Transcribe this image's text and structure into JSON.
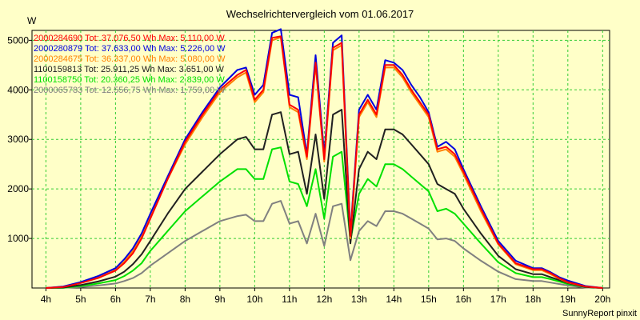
{
  "chart_data": {
    "type": "line",
    "title": "Wechselrichtervergleich vom 01.06.2017",
    "ylabel": "W",
    "xlabel": "",
    "footer": "SunnyReport pinxit",
    "grid": true,
    "ylim": [
      0,
      5200
    ],
    "xlim": [
      3.6,
      20.2
    ],
    "y_ticks": [
      1000,
      2000,
      3000,
      4000,
      5000
    ],
    "x_ticks": [
      {
        "v": 4,
        "label": "4h"
      },
      {
        "v": 5,
        "label": "5h"
      },
      {
        "v": 6,
        "label": "6h"
      },
      {
        "v": 7,
        "label": "7h"
      },
      {
        "v": 8,
        "label": "8h"
      },
      {
        "v": 9,
        "label": "9h"
      },
      {
        "v": 10,
        "label": "10h"
      },
      {
        "v": 11,
        "label": "11h"
      },
      {
        "v": 12,
        "label": "12h"
      },
      {
        "v": 13,
        "label": "13h"
      },
      {
        "v": 14,
        "label": "14h"
      },
      {
        "v": 15,
        "label": "15h"
      },
      {
        "v": 16,
        "label": "16h"
      },
      {
        "v": 17,
        "label": "17h"
      },
      {
        "v": 18,
        "label": "18h"
      },
      {
        "v": 19,
        "label": "19h"
      },
      {
        "v": 20,
        "label": "20h"
      }
    ],
    "x": [
      4.0,
      4.5,
      5.0,
      5.5,
      6.0,
      6.25,
      6.5,
      6.75,
      7.0,
      7.5,
      8.0,
      8.5,
      9.0,
      9.5,
      9.75,
      10.0,
      10.25,
      10.5,
      10.75,
      11.0,
      11.25,
      11.5,
      11.75,
      12.0,
      12.25,
      12.5,
      12.75,
      13.0,
      13.25,
      13.5,
      13.75,
      14.0,
      14.25,
      14.5,
      14.75,
      15.0,
      15.25,
      15.5,
      15.75,
      16.0,
      16.5,
      17.0,
      17.5,
      18.0,
      18.25,
      18.5,
      18.75,
      19.0,
      19.5,
      20.0
    ],
    "series": [
      {
        "name": "2000284690",
        "legend": "2000284690 Tot: 37.076,50 Wh Max: 5.110,00 W",
        "color": "#ff0000",
        "values": [
          0,
          20,
          100,
          200,
          350,
          500,
          700,
          1000,
          1400,
          2200,
          2950,
          3500,
          4000,
          4300,
          4400,
          3800,
          4000,
          5050,
          5080,
          3700,
          3600,
          2650,
          4550,
          2600,
          4850,
          4950,
          1050,
          3500,
          3800,
          3500,
          4500,
          4500,
          4300,
          4000,
          3750,
          3500,
          2800,
          2850,
          2700,
          2350,
          1600,
          900,
          500,
          380,
          380,
          300,
          200,
          120,
          30,
          0
        ]
      },
      {
        "name": "2000280879",
        "legend": "2000280879 Tot: 37.633,00 Wh Max: 5.226,00 W",
        "color": "#0000e0",
        "values": [
          0,
          30,
          120,
          240,
          400,
          580,
          800,
          1100,
          1500,
          2250,
          3000,
          3550,
          4050,
          4400,
          4450,
          3900,
          4100,
          5150,
          5226,
          3900,
          3850,
          2700,
          4700,
          2700,
          4950,
          5100,
          1100,
          3600,
          3900,
          3600,
          4600,
          4550,
          4400,
          4100,
          3850,
          3550,
          2850,
          2950,
          2800,
          2400,
          1650,
          950,
          550,
          400,
          400,
          320,
          220,
          150,
          40,
          0
        ]
      },
      {
        "name": "2000284675",
        "legend": "2000284675 Tot: 36.337,00 Wh Max: 5.080,00 W",
        "color": "#ff8000",
        "values": [
          0,
          25,
          110,
          220,
          380,
          530,
          750,
          1050,
          1450,
          2200,
          2900,
          3450,
          3950,
          4250,
          4350,
          3750,
          3950,
          5000,
          5060,
          3650,
          3550,
          2600,
          4500,
          2550,
          4800,
          4900,
          1000,
          3450,
          3750,
          3450,
          4450,
          4450,
          4250,
          3950,
          3700,
          3450,
          2750,
          2800,
          2650,
          2300,
          1550,
          880,
          480,
          360,
          360,
          280,
          190,
          110,
          30,
          0
        ]
      },
      {
        "name": "1100159813",
        "legend": "1100159813 Tot: 25.911,25 Wh Max: 3.651,00 W",
        "color": "#202020",
        "values": [
          0,
          10,
          60,
          130,
          230,
          330,
          480,
          680,
          950,
          1500,
          2000,
          2350,
          2700,
          3000,
          3050,
          2800,
          2800,
          3500,
          3550,
          2700,
          2750,
          1900,
          3100,
          1800,
          3500,
          3600,
          900,
          2400,
          2750,
          2600,
          3200,
          3200,
          3100,
          2900,
          2700,
          2500,
          2100,
          2000,
          1900,
          1600,
          1100,
          650,
          380,
          280,
          280,
          220,
          160,
          100,
          20,
          0
        ]
      },
      {
        "name": "1100158750",
        "legend": "1100158750 Tot: 20.360,25 Wh Max: 2.839,00 W",
        "color": "#00e000",
        "values": [
          0,
          5,
          40,
          90,
          160,
          240,
          350,
          500,
          750,
          1150,
          1550,
          1850,
          2150,
          2400,
          2400,
          2200,
          2200,
          2800,
          2839,
          2150,
          2100,
          1650,
          2400,
          1400,
          2650,
          2750,
          950,
          1900,
          2200,
          2050,
          2500,
          2500,
          2400,
          2250,
          2100,
          1950,
          1550,
          1600,
          1500,
          1300,
          900,
          520,
          300,
          220,
          220,
          180,
          130,
          80,
          20,
          0
        ]
      },
      {
        "name": "2000065783",
        "legend": "2000065783 Tot: 12.556,75 Wh Max: 1.759,00 W",
        "color": "#808080",
        "values": [
          0,
          5,
          20,
          50,
          90,
          140,
          200,
          300,
          450,
          700,
          950,
          1150,
          1350,
          1450,
          1480,
          1350,
          1350,
          1700,
          1759,
          1300,
          1350,
          900,
          1500,
          850,
          1650,
          1700,
          560,
          1150,
          1350,
          1250,
          1550,
          1550,
          1500,
          1400,
          1300,
          1200,
          980,
          1000,
          950,
          800,
          550,
          330,
          180,
          140,
          140,
          110,
          80,
          50,
          10,
          0
        ]
      }
    ]
  }
}
